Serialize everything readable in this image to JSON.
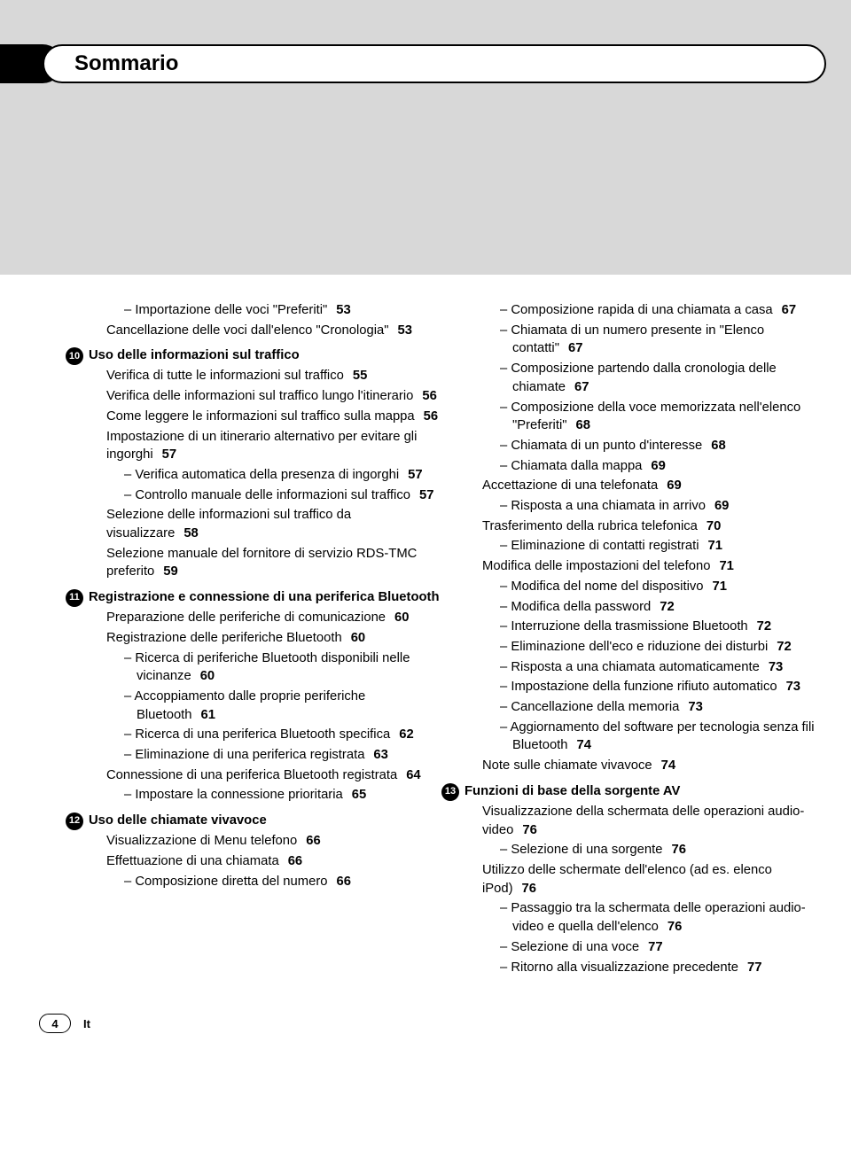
{
  "header": {
    "title": "Sommario"
  },
  "footer": {
    "page": "4",
    "lang": "It"
  },
  "col1": [
    {
      "lvl": 3,
      "t": "Importazione delle voci \"Preferiti\"",
      "p": "53"
    },
    {
      "lvl": 2,
      "t": "Cancellazione delle voci dall'elenco \"Cronologia\"",
      "p": "53"
    },
    {
      "lvl": 0,
      "num": "10",
      "t": "Uso delle informazioni sul traffico"
    },
    {
      "lvl": 2,
      "t": "Verifica di tutte le informazioni sul traffico",
      "p": "55"
    },
    {
      "lvl": 2,
      "t": "Verifica delle informazioni sul traffico lungo l'itinerario",
      "p": "56"
    },
    {
      "lvl": 2,
      "t": "Come leggere le informazioni sul traffico sulla mappa",
      "p": "56"
    },
    {
      "lvl": 2,
      "t": "Impostazione di un itinerario alternativo per evitare gli ingorghi",
      "p": "57"
    },
    {
      "lvl": 3,
      "t": "Verifica automatica della presenza di ingorghi",
      "p": "57"
    },
    {
      "lvl": 3,
      "t": "Controllo manuale delle informazioni sul traffico",
      "p": "57"
    },
    {
      "lvl": 2,
      "t": "Selezione delle informazioni sul traffico da visualizzare",
      "p": "58"
    },
    {
      "lvl": 2,
      "t": "Selezione manuale del fornitore di servizio RDS-TMC preferito",
      "p": "59"
    },
    {
      "lvl": 0,
      "num": "11",
      "t": "Registrazione e connessione di una periferica Bluetooth"
    },
    {
      "lvl": 2,
      "t": "Preparazione delle periferiche di comunicazione",
      "p": "60"
    },
    {
      "lvl": 2,
      "t": "Registrazione delle periferiche Bluetooth",
      "p": "60"
    },
    {
      "lvl": 3,
      "t": "Ricerca di periferiche Bluetooth disponibili nelle vicinanze",
      "p": "60"
    },
    {
      "lvl": 3,
      "t": "Accoppiamento dalle proprie periferiche Bluetooth",
      "p": "61"
    },
    {
      "lvl": 3,
      "t": "Ricerca di una periferica Bluetooth specifica",
      "p": "62"
    },
    {
      "lvl": 3,
      "t": "Eliminazione di una periferica registrata",
      "p": "63"
    },
    {
      "lvl": 2,
      "t": "Connessione di una periferica Bluetooth registrata",
      "p": "64"
    },
    {
      "lvl": 3,
      "t": "Impostare la connessione prioritaria",
      "p": "65"
    },
    {
      "lvl": 0,
      "num": "12",
      "t": "Uso delle chiamate vivavoce"
    },
    {
      "lvl": 2,
      "t": "Visualizzazione di Menu telefono",
      "p": "66"
    },
    {
      "lvl": 2,
      "t": "Effettuazione di una chiamata",
      "p": "66"
    },
    {
      "lvl": 3,
      "t": "Composizione diretta del numero",
      "p": "66"
    }
  ],
  "col2": [
    {
      "lvl": 3,
      "t": "Composizione rapida di una chiamata a casa",
      "p": "67"
    },
    {
      "lvl": 3,
      "t": "Chiamata di un numero presente in \"Elenco contatti\"",
      "p": "67"
    },
    {
      "lvl": 3,
      "t": "Composizione partendo dalla cronologia delle chiamate",
      "p": "67"
    },
    {
      "lvl": 3,
      "t": "Composizione della voce memorizzata nell'elenco \"Preferiti\"",
      "p": "68"
    },
    {
      "lvl": 3,
      "t": "Chiamata di un punto d'interesse",
      "p": "68"
    },
    {
      "lvl": 3,
      "t": "Chiamata dalla mappa",
      "p": "69"
    },
    {
      "lvl": 2,
      "t": "Accettazione di una telefonata",
      "p": "69"
    },
    {
      "lvl": 3,
      "t": "Risposta a una chiamata in arrivo",
      "p": "69"
    },
    {
      "lvl": 2,
      "t": "Trasferimento della rubrica telefonica",
      "p": "70"
    },
    {
      "lvl": 3,
      "t": "Eliminazione di contatti registrati",
      "p": "71"
    },
    {
      "lvl": 2,
      "t": "Modifica delle impostazioni del telefono",
      "p": "71"
    },
    {
      "lvl": 3,
      "t": "Modifica del nome del dispositivo",
      "p": "71"
    },
    {
      "lvl": 3,
      "t": "Modifica della password",
      "p": "72"
    },
    {
      "lvl": 3,
      "t": "Interruzione della trasmissione Bluetooth",
      "p": "72"
    },
    {
      "lvl": 3,
      "t": "Eliminazione dell'eco e riduzione dei disturbi",
      "p": "72"
    },
    {
      "lvl": 3,
      "t": "Risposta a una chiamata automaticamente",
      "p": "73"
    },
    {
      "lvl": 3,
      "t": "Impostazione della funzione rifiuto automatico",
      "p": "73"
    },
    {
      "lvl": 3,
      "t": "Cancellazione della memoria",
      "p": "73"
    },
    {
      "lvl": 3,
      "t": "Aggiornamento del software per tecnologia senza fili Bluetooth",
      "p": "74"
    },
    {
      "lvl": 2,
      "t": "Note sulle chiamate vivavoce",
      "p": "74"
    },
    {
      "lvl": 0,
      "num": "13",
      "t": "Funzioni di base della sorgente AV"
    },
    {
      "lvl": 2,
      "t": "Visualizzazione della schermata delle operazioni audio-video",
      "p": "76"
    },
    {
      "lvl": 3,
      "t": "Selezione di una sorgente",
      "p": "76"
    },
    {
      "lvl": 2,
      "t": "Utilizzo delle schermate dell'elenco (ad es. elenco iPod)",
      "p": "76"
    },
    {
      "lvl": 3,
      "t": "Passaggio tra la schermata delle operazioni audio-video e quella dell'elenco",
      "p": "76"
    },
    {
      "lvl": 3,
      "t": "Selezione di una voce",
      "p": "77"
    },
    {
      "lvl": 3,
      "t": "Ritorno alla visualizzazione precedente",
      "p": "77"
    }
  ]
}
